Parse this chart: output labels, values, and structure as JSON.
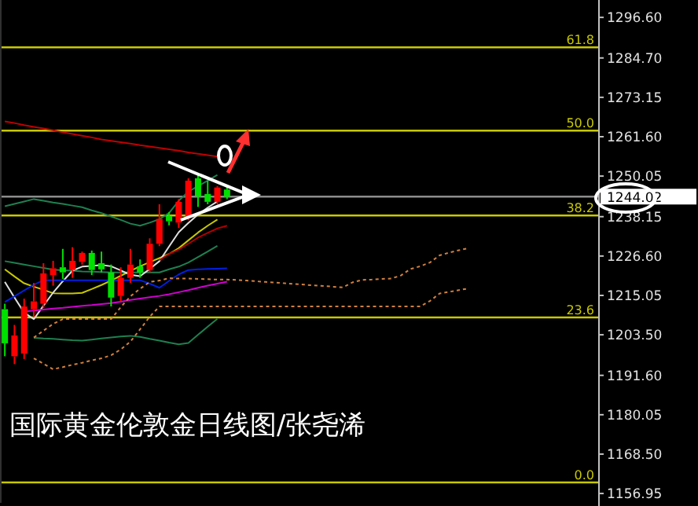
{
  "chart_data": [
    {
      "type": "candlestick",
      "categories": [
        null,
        null,
        null,
        null,
        null,
        null,
        null,
        null,
        null,
        null,
        null,
        null,
        null,
        null,
        null,
        null,
        null,
        null,
        null,
        null,
        null,
        null,
        null,
        null
      ],
      "ohlc": [
        [
          1211.0,
          1212.6,
          1197.2,
          1201.0
        ],
        [
          1197.2,
          1206.4,
          1194.9,
          1203.3
        ],
        [
          1198.0,
          1214.1,
          1196.4,
          1211.8
        ],
        [
          1211.0,
          1218.7,
          1208.7,
          1213.3
        ],
        [
          1212.6,
          1224.5,
          1211.3,
          1221.5
        ],
        [
          1221.0,
          1225.2,
          1217.9,
          1223.0
        ],
        [
          1223.3,
          1228.7,
          1219.9,
          1221.8
        ],
        [
          1222.5,
          1229.2,
          1220.2,
          1225.2
        ],
        [
          1224.9,
          1227.9,
          1224.1,
          1227.5
        ],
        [
          1227.5,
          1228.2,
          1221.0,
          1222.5
        ],
        [
          1224.5,
          1227.9,
          1221.8,
          1222.7
        ],
        [
          1221.8,
          1224.1,
          1211.8,
          1214.4
        ],
        [
          1214.9,
          1223.3,
          1213.3,
          1220.2
        ],
        [
          1220.2,
          1228.7,
          1218.7,
          1224.1
        ],
        [
          1223.6,
          1225.6,
          1220.2,
          1221.8
        ],
        [
          1222.5,
          1231.8,
          1221.8,
          1230.2
        ],
        [
          1230.2,
          1241.8,
          1229.5,
          1237.5
        ],
        [
          1238.4,
          1239.5,
          1235.6,
          1236.8
        ],
        [
          1236.4,
          1243.3,
          1234.8,
          1242.5
        ],
        [
          1237.9,
          1249.4,
          1237.1,
          1248.7
        ],
        [
          1249.4,
          1251.0,
          1241.0,
          1244.1
        ],
        [
          1244.8,
          1248.7,
          1241.8,
          1242.5
        ],
        [
          1242.5,
          1247.1,
          1241.8,
          1246.7
        ],
        [
          1246.1,
          1247.1,
          1243.3,
          1244.0
        ]
      ],
      "colors": [
        "#00e000",
        "#ff0000",
        "#ff0000",
        "#ff0000",
        "#ff0000",
        "#ff0000",
        "#00e000",
        "#ff0000",
        "#ff0000",
        "#00e000",
        "#00e000",
        "#00e000",
        "#ff0000",
        "#ff0000",
        "#00e000",
        "#ff0000",
        "#ff0000",
        "#00e000",
        "#ff0000",
        "#ff0000",
        "#00e000",
        "#00e000",
        "#ff0000",
        "#00e000"
      ],
      "ylim": [
        1154.2,
        1301.7
      ],
      "tick_labels": false
    },
    {
      "type": "line",
      "categories": [
        null,
        null,
        null,
        null,
        null,
        null,
        null,
        null,
        null,
        null,
        null,
        null,
        null,
        null,
        null,
        null,
        null,
        null,
        null,
        null,
        null,
        null,
        null,
        null,
        null,
        null,
        null,
        null,
        null,
        null,
        null,
        null,
        null,
        null,
        null,
        null,
        null,
        null,
        null,
        null,
        null,
        null,
        null,
        null,
        null,
        null,
        null,
        null,
        null,
        null,
        null,
        null,
        null,
        null,
        null,
        null,
        null,
        null,
        null,
        null,
        null,
        null
      ],
      "ylim": [
        1154.2,
        1301.7
      ],
      "yticks": [
        {
          "value": 1296.6,
          "label": "1296.60"
        },
        {
          "value": 1284.7,
          "label": "1284.70"
        },
        {
          "value": 1273.15,
          "label": "1273.15"
        },
        {
          "value": 1261.6,
          "label": "1261.60"
        },
        {
          "value": 1250.05,
          "label": "1250.05"
        },
        {
          "value": 1238.15,
          "label": "1238.15"
        },
        {
          "value": 1226.6,
          "label": "1226.60"
        },
        {
          "value": 1215.05,
          "label": "1215.05"
        },
        {
          "value": 1203.5,
          "label": "1203.50"
        },
        {
          "value": 1191.6,
          "label": "1191.60"
        },
        {
          "value": 1180.05,
          "label": "1180.05"
        },
        {
          "value": 1168.5,
          "label": "1168.50"
        },
        {
          "value": 1156.95,
          "label": "1156.95"
        }
      ],
      "tick_labels": "y",
      "ref_lines": [
        {
          "axis": "y",
          "value": 1287.8,
          "color": "#c8c800"
        },
        {
          "axis": "y",
          "value": 1263.4,
          "color": "#c8c800"
        },
        {
          "axis": "y",
          "value": 1238.5,
          "color": "#c8c800"
        },
        {
          "axis": "y",
          "value": 1208.6,
          "color": "#c8c800"
        },
        {
          "axis": "y",
          "value": 1160.2,
          "color": "#c8c800"
        },
        {
          "axis": "y",
          "value": 1244.02,
          "label": "1244.02",
          "color": "#8c8c8c"
        }
      ],
      "annotations": [
        {
          "text": "61.8",
          "y": 1287.8
        },
        {
          "text": "50.0",
          "y": 1263.4
        },
        {
          "text": "38.2",
          "y": 1238.5
        },
        {
          "text": "23.6",
          "y": 1208.6
        },
        {
          "text": "0.0",
          "y": 1160.2
        },
        "国际黄金伦敦金日线图/张尧浠"
      ],
      "series": [
        {
          "color": "#c00000",
          "values": [
            1266.1,
            1265.6,
            1265.0,
            1264.5,
            1264.0,
            1263.5,
            1262.9,
            1262.4,
            1261.9,
            1261.4,
            1260.8,
            1260.4,
            1260.0,
            1259.6,
            1259.1,
            1258.7,
            1258.3,
            1257.9,
            1257.5,
            1257.0,
            1256.6,
            1256.2,
            1255.8,
            null,
            null,
            null,
            null,
            null,
            null,
            null,
            null,
            null,
            null,
            null,
            null,
            null,
            null,
            null,
            null,
            null,
            null,
            null,
            null,
            null,
            null,
            null,
            null,
            null,
            null,
            null,
            null,
            null,
            null,
            null,
            null,
            null,
            null,
            null,
            null,
            null,
            null,
            null
          ]
        },
        {
          "color": "#1e8050",
          "values": [
            1241.2,
            1241.9,
            1242.6,
            1243.3,
            1242.8,
            1242.3,
            1241.9,
            1241.4,
            1240.9,
            1240.0,
            1239.2,
            1238.2,
            1237.2,
            1236.1,
            1235.5,
            1236.4,
            1237.4,
            1239.2,
            1242.8,
            1245.5,
            1247.1,
            1248.7,
            1250.4,
            null,
            null,
            null,
            null,
            null,
            null,
            null,
            null,
            null,
            null,
            null,
            null,
            null,
            null,
            null,
            null,
            null,
            null,
            null,
            null,
            null,
            null,
            null,
            null,
            null,
            null,
            null,
            null,
            null,
            null,
            null,
            null,
            null,
            null,
            null,
            null,
            null,
            null,
            null
          ]
        },
        {
          "color": "#1e8050",
          "values": [
            1225.1,
            1224.6,
            1224.1,
            1223.6,
            1223.1,
            1222.6,
            1222.4,
            1222.3,
            1222.1,
            1222.0,
            1221.9,
            1221.8,
            1221.8,
            1221.8,
            1221.8,
            1221.8,
            1221.8,
            1222.7,
            1223.5,
            1224.7,
            1226.3,
            1227.9,
            1229.6,
            null,
            null,
            null,
            null,
            null,
            null,
            null,
            null,
            null,
            null,
            null,
            null,
            null,
            null,
            null,
            null,
            null,
            null,
            null,
            null,
            null,
            null,
            null,
            null,
            null,
            null,
            null,
            null,
            null,
            null,
            null,
            null,
            null,
            null,
            null,
            null,
            null,
            null,
            null
          ]
        },
        {
          "color": "#1e8050",
          "values": [
            null,
            null,
            null,
            1202.6,
            1202.4,
            1202.3,
            1202.1,
            1201.9,
            1201.8,
            1202.1,
            1202.4,
            1202.7,
            1203.0,
            1203.2,
            1202.9,
            1202.3,
            1201.8,
            1201.2,
            1200.7,
            1201.1,
            1203.5,
            1205.9,
            1208.2,
            null,
            null,
            null,
            null,
            null,
            null,
            null,
            null,
            null,
            null,
            null,
            null,
            null,
            null,
            null,
            null,
            null,
            null,
            null,
            null,
            null,
            null,
            null,
            null,
            null,
            null,
            null,
            null,
            null,
            null,
            null,
            null,
            null,
            null,
            null,
            null,
            null,
            null,
            null
          ]
        },
        {
          "color": "#c8c800",
          "values": [
            1222.7,
            1220.6,
            1218.6,
            1217.6,
            1216.7,
            1215.7,
            1215.6,
            1215.6,
            1215.8,
            1216.9,
            1218.1,
            1219.4,
            1220.8,
            1222.2,
            1223.6,
            1224.8,
            1226.0,
            1227.2,
            1228.9,
            1231.2,
            1233.5,
            1235.5,
            1237.3,
            null,
            null,
            null,
            null,
            null,
            null,
            null,
            null,
            null,
            null,
            null,
            null,
            null,
            null,
            null,
            null,
            null,
            null,
            null,
            null,
            null,
            null,
            null,
            null,
            null,
            null,
            null,
            null,
            null,
            null,
            null,
            null,
            null,
            null,
            null,
            null,
            null,
            null,
            null
          ]
        },
        {
          "color": "#e0e0e0",
          "values": [
            1219.0,
            1214.4,
            1210.0,
            1208.1,
            1212.0,
            1215.9,
            1219.2,
            1222.3,
            1223.5,
            1223.7,
            1224.0,
            1223.6,
            1222.4,
            1221.1,
            1220.7,
            1222.8,
            1225.1,
            1229.4,
            1233.6,
            1236.3,
            1238.8,
            1240.8,
            1242.6,
            null,
            null,
            null,
            null,
            null,
            null,
            null,
            null,
            null,
            null,
            null,
            null,
            null,
            null,
            null,
            null,
            null,
            null,
            null,
            null,
            null,
            null,
            null,
            null,
            null,
            null,
            null,
            null,
            null,
            null,
            null,
            null,
            null,
            null,
            null,
            null,
            null,
            null,
            null
          ]
        },
        {
          "color": "#b00000",
          "values": [
            null,
            null,
            null,
            null,
            null,
            null,
            null,
            null,
            null,
            null,
            null,
            null,
            null,
            null,
            null,
            null,
            1225.4,
            1227.2,
            1228.5,
            1230.2,
            1232.0,
            1233.4,
            1234.7,
            1235.5,
            null,
            null,
            null,
            null,
            null,
            null,
            null,
            null,
            null,
            null,
            null,
            null,
            null,
            null,
            null,
            null,
            null,
            null,
            null,
            null,
            null,
            null,
            null,
            null,
            null,
            null,
            null,
            null,
            null,
            null,
            null,
            null,
            null,
            null,
            null,
            null,
            null,
            null
          ]
        },
        {
          "color": "#0020e0",
          "values": [
            1213.1,
            1214.8,
            1216.5,
            1218.2,
            1219.5,
            1219.5,
            1219.5,
            1219.5,
            1219.5,
            1219.5,
            1219.5,
            1219.5,
            1219.5,
            1219.5,
            1219.5,
            1218.5,
            1217.3,
            1219.3,
            1221.2,
            1222.5,
            1222.7,
            1222.8,
            1222.9,
            1223.0,
            null,
            null,
            null,
            null,
            null,
            null,
            null,
            null,
            null,
            null,
            null,
            null,
            null,
            null,
            null,
            null,
            null,
            null,
            null,
            null,
            null,
            null,
            null,
            null,
            null,
            null,
            null,
            null,
            null,
            null,
            null,
            null,
            null,
            null,
            null,
            null,
            null,
            null
          ]
        },
        {
          "color": "#d000d0",
          "values": [
            null,
            null,
            1210.3,
            1210.6,
            1210.9,
            1211.2,
            1211.4,
            1211.7,
            1212.0,
            1212.2,
            1212.5,
            1212.8,
            1213.2,
            1213.7,
            1214.1,
            1214.5,
            1214.9,
            1215.4,
            1216.0,
            1216.6,
            1217.3,
            1217.9,
            1218.5,
            1219.1,
            null,
            null,
            null,
            null,
            null,
            null,
            null,
            null,
            null,
            null,
            null,
            null,
            null,
            null,
            null,
            null,
            null,
            null,
            null,
            null,
            null,
            null,
            null,
            null,
            null,
            null,
            null,
            null,
            null,
            null,
            null,
            null,
            null,
            null,
            null,
            null,
            null,
            null
          ]
        },
        {
          "color": "#d08040",
          "line_style": "dotted",
          "values": [
            null,
            null,
            null,
            1202.7,
            1204.7,
            1206.7,
            1208.1,
            1208.1,
            1208.1,
            1208.1,
            1208.1,
            1208.1,
            1211.6,
            1214.8,
            1217.0,
            1219.0,
            1219.4,
            1220.1,
            1220.0,
            1220.0,
            1219.9,
            1219.8,
            1219.7,
            1219.7,
            1219.6,
            1219.4,
            1219.2,
            1219.0,
            1218.8,
            1218.6,
            1218.4,
            1218.2,
            1218.0,
            1217.8,
            1217.6,
            1217.4,
            1218.9,
            1219.6,
            1219.7,
            1219.9,
            1220.0,
            1220.9,
            1222.8,
            1223.6,
            1224.7,
            1226.8,
            1227.6,
            1228.3,
            1228.9,
            null,
            null,
            null,
            null,
            null,
            null,
            null,
            null,
            null,
            null,
            null,
            null,
            null
          ]
        },
        {
          "color": "#d08040",
          "line_style": "dotted",
          "values": [
            null,
            null,
            null,
            1196.6,
            1195.0,
            1193.4,
            1194.0,
            1194.7,
            1195.3,
            1196.0,
            1196.6,
            1197.5,
            1199.2,
            1201.5,
            1205.1,
            1208.8,
            1211.8,
            1211.8,
            1211.8,
            1211.8,
            1211.8,
            1211.8,
            1211.8,
            1211.8,
            1211.8,
            1211.8,
            1211.8,
            1211.8,
            1211.8,
            1211.8,
            1211.8,
            1211.8,
            1211.8,
            1211.8,
            1211.8,
            1211.8,
            1211.8,
            1211.8,
            1211.8,
            1211.8,
            1211.8,
            1211.8,
            1211.8,
            1211.8,
            1213.4,
            1215.6,
            1216.1,
            1216.6,
            1217.1,
            null,
            null,
            null,
            null,
            null,
            null,
            null,
            null,
            null,
            null,
            null,
            null,
            null
          ]
        }
      ]
    }
  ]
}
